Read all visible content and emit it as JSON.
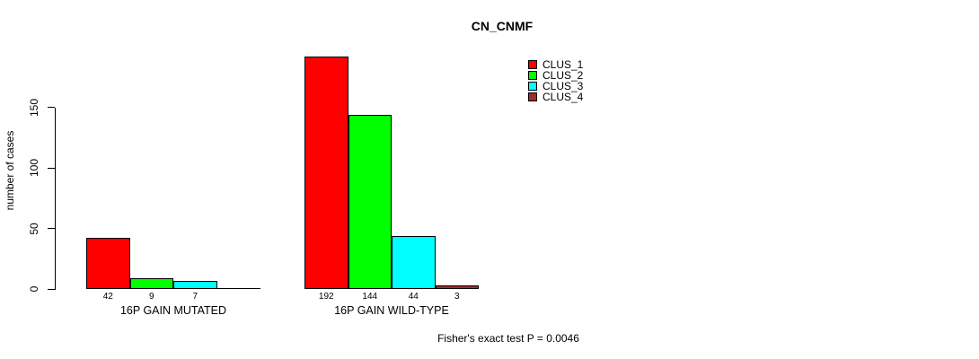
{
  "chart_data": {
    "type": "bar",
    "title": "CN_CNMF",
    "ylabel": "number of cases",
    "yticks": [
      0,
      50,
      100,
      150
    ],
    "ylim": [
      0,
      192
    ],
    "grid": false,
    "legend_position": "top-right",
    "series": [
      {
        "name": "CLUS_1",
        "color": "#FF0000"
      },
      {
        "name": "CLUS_2",
        "color": "#00FF00"
      },
      {
        "name": "CLUS_3",
        "color": "#00FFFF"
      },
      {
        "name": "CLUS_4",
        "color": "#A52A2A"
      }
    ],
    "categories": [
      "16P GAIN MUTATED",
      "16P GAIN WILD-TYPE"
    ],
    "groups": [
      {
        "label": "16P GAIN MUTATED",
        "values": [
          42,
          9,
          7,
          0
        ]
      },
      {
        "label": "16P GAIN WILD-TYPE",
        "values": [
          192,
          144,
          44,
          3
        ]
      }
    ],
    "annotation": "Fisher's exact test P = 0.0046"
  },
  "colors": {
    "bar_border": "#000000",
    "axis": "#000000",
    "text": "#000000",
    "background": "#FFFFFF"
  }
}
